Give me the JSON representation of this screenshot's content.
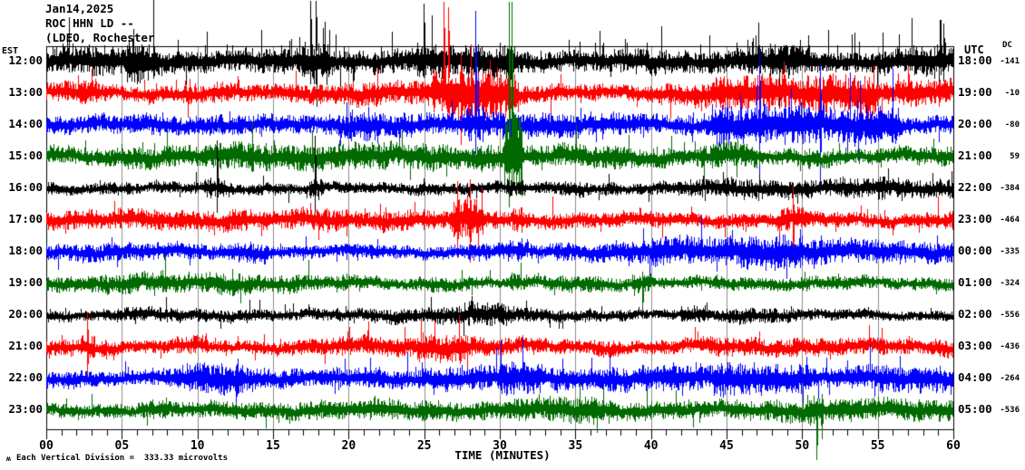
{
  "header": {
    "line1": "Jan14,2025",
    "line2": "ROC HHN LD --",
    "line3": "(LDEO, Rochester"
  },
  "chart_data": {
    "type": "line",
    "subtype": "seismogram-helicorder",
    "title": "Jan14,2025 ROC HHN LD -- (LDEO, Rochester",
    "xlabel": "TIME (MINUTES)",
    "x_range_minutes": [
      0,
      60
    ],
    "x_tick_step_minutes": 5,
    "minor_tick_step_minutes": 1,
    "x_ticks": [
      "00",
      "05",
      "10",
      "15",
      "20",
      "25",
      "30",
      "35",
      "40",
      "45",
      "50",
      "55",
      "60"
    ],
    "left_axis_header": "EST",
    "right_axis_header": "UTC",
    "dc_header": "DC",
    "footer_mark": "ʍ",
    "footer_note": "Each Vertical Division =  333.33 microvolts",
    "grid": "vertical lines every 5 minutes",
    "legend_position": "none",
    "colors": {
      "black": "#000000",
      "red": "#ff0000",
      "blue": "#0000ff",
      "green": "#006a00",
      "grid": "#8c8c8c",
      "frame": "#000000"
    },
    "rows": [
      {
        "est": "12:00",
        "utc": "18:00",
        "dc": "-141",
        "color": "black",
        "amp": 15,
        "drift": 3,
        "spike_p": 0.12,
        "spike_m": 2.2,
        "up_bias": 0.8,
        "seed": 13,
        "bursts": [
          [
            5.3,
            7.2,
            1.5
          ],
          [
            16.8,
            18.6,
            1.7
          ],
          [
            24.2,
            31.2,
            1.45
          ],
          [
            38.5,
            41,
            1.3
          ],
          [
            46.5,
            50.5,
            1.35
          ],
          [
            55,
            59.5,
            1.3
          ]
        ],
        "events": [
          [
            17.45,
            1,
            80
          ],
          [
            17.8,
            1,
            74
          ],
          [
            24.95,
            4,
            86
          ],
          [
            59.35,
            26,
            90
          ]
        ]
      },
      {
        "est": "13:00",
        "utc": "19:00",
        "dc": "-10",
        "color": "red",
        "amp": 11,
        "drift": 3.5,
        "spike_p": 0.07,
        "spike_m": 1.8,
        "up_bias": 0.6,
        "seed": 7932,
        "bursts": [
          [
            2.2,
            3.3,
            1.5
          ],
          [
            9,
            12,
            1.3
          ],
          [
            25.5,
            31.2,
            1.9
          ],
          [
            44,
            55,
            1.45
          ]
        ],
        "events": [
          [
            26.3,
            2,
            118
          ],
          [
            26.6,
            8,
            112
          ],
          [
            27.4,
            60,
            160
          ]
        ]
      },
      {
        "est": "14:00",
        "utc": "20:00",
        "dc": "-80",
        "color": "blue",
        "amp": 10,
        "drift": 3,
        "spike_p": 0.06,
        "spike_m": 1.6,
        "up_bias": 0.5,
        "seed": 15851,
        "bursts": [
          [
            20,
            22,
            1.3
          ],
          [
            27.6,
            29,
            1.6
          ],
          [
            44,
            56.5,
            1.9
          ]
        ],
        "events": [
          [
            28.35,
            12,
            170
          ],
          [
            47.15,
            55,
            192
          ],
          [
            51.2,
            70,
            200
          ]
        ]
      },
      {
        "est": "15:00",
        "utc": "21:00",
        "dc": "59",
        "color": "green",
        "amp": 11,
        "drift": 4,
        "spike_p": 0.06,
        "spike_m": 1.6,
        "up_bias": 0.5,
        "seed": 23770,
        "bursts": [
          [
            11,
            14,
            1.35
          ],
          [
            30.25,
            31.45,
            3.4
          ],
          [
            43,
            47,
            1.3
          ]
        ],
        "events": [
          [
            30.62,
            2,
            215
          ],
          [
            30.75,
            2,
            215
          ],
          [
            31.05,
            130,
            213
          ]
        ]
      },
      {
        "est": "16:00",
        "utc": "22:00",
        "dc": "-384",
        "color": "black",
        "amp": 8,
        "drift": 2.5,
        "spike_p": 0.06,
        "spike_m": 1.5,
        "up_bias": 0.55,
        "seed": 31689,
        "bursts": [
          [
            10.5,
            12.2,
            1.5
          ],
          [
            17.4,
            18.3,
            1.9
          ],
          [
            30.4,
            31.6,
            1.5
          ],
          [
            55,
            57,
            1.3
          ]
        ],
        "events": [
          [
            11.3,
            155,
            235
          ],
          [
            17.75,
            150,
            238
          ]
        ]
      },
      {
        "est": "17:00",
        "utc": "23:00",
        "dc": "-464",
        "color": "red",
        "amp": 11,
        "drift": 3,
        "spike_p": 0.06,
        "spike_m": 1.7,
        "up_bias": 0.55,
        "seed": 39608,
        "bursts": [
          [
            26.7,
            28.9,
            2.0
          ],
          [
            30.8,
            31.6,
            1.5
          ],
          [
            48.3,
            50.2,
            1.55
          ]
        ],
        "events": [
          [
            27.2,
            200,
            285
          ],
          [
            28.0,
            198,
            290
          ],
          [
            49.4,
            205,
            288
          ]
        ]
      },
      {
        "est": "18:00",
        "utc": "00:00",
        "dc": "-335",
        "color": "blue",
        "amp": 10,
        "drift": 3,
        "spike_p": 0.06,
        "spike_m": 1.5,
        "up_bias": 0.55,
        "seed": 47527,
        "bursts": [
          [
            12,
            14.5,
            1.3
          ],
          [
            30.5,
            31.5,
            1.4
          ],
          [
            40,
            50,
            1.4
          ]
        ],
        "events": []
      },
      {
        "est": "19:00",
        "utc": "01:00",
        "dc": "-324",
        "color": "green",
        "amp": 9,
        "drift": 3,
        "spike_p": 0.05,
        "spike_m": 1.5,
        "up_bias": 0.5,
        "seed": 55446,
        "bursts": [
          [
            5,
            8,
            1.3
          ],
          [
            30.6,
            31.3,
            1.4
          ],
          [
            38.7,
            40,
            1.7
          ]
        ],
        "events": [
          [
            39.4,
            300,
            345
          ]
        ]
      },
      {
        "est": "20:00",
        "utc": "02:00",
        "dc": "-556",
        "color": "black",
        "amp": 7,
        "drift": 2.5,
        "spike_p": 0.05,
        "spike_m": 1.4,
        "up_bias": 0.55,
        "seed": 63365,
        "bursts": [
          [
            27.5,
            31,
            1.35
          ],
          [
            42,
            44,
            1.25
          ]
        ],
        "events": []
      },
      {
        "est": "21:00",
        "utc": "03:00",
        "dc": "-436",
        "color": "red",
        "amp": 9.5,
        "drift": 3.5,
        "spike_p": 0.055,
        "spike_m": 1.6,
        "up_bias": 0.55,
        "seed": 71284,
        "bursts": [
          [
            2.3,
            3.2,
            1.6
          ],
          [
            8.5,
            10.5,
            1.35
          ],
          [
            24.5,
            28,
            1.4
          ],
          [
            36,
            38,
            1.3
          ]
        ],
        "events": [
          [
            2.7,
            345,
            420
          ]
        ]
      },
      {
        "est": "22:00",
        "utc": "04:00",
        "dc": "-264",
        "color": "blue",
        "amp": 10.5,
        "drift": 3,
        "spike_p": 0.06,
        "spike_m": 1.6,
        "up_bias": 0.55,
        "seed": 79203,
        "bursts": [
          [
            9,
            13,
            1.5
          ],
          [
            30,
            33,
            1.3
          ],
          [
            44,
            50.5,
            1.45
          ]
        ],
        "events": []
      },
      {
        "est": "23:00",
        "utc": "05:00",
        "dc": "-536",
        "color": "green",
        "amp": 9,
        "drift": 3,
        "spike_p": 0.05,
        "spike_m": 1.5,
        "up_bias": 0.5,
        "seed": 87122,
        "bursts": [
          [
            6,
            8,
            1.25
          ],
          [
            33,
            36.5,
            1.3
          ],
          [
            50.3,
            51.4,
            1.5
          ]
        ],
        "events": [
          [
            50.95,
            443,
            508
          ]
        ]
      }
    ]
  }
}
